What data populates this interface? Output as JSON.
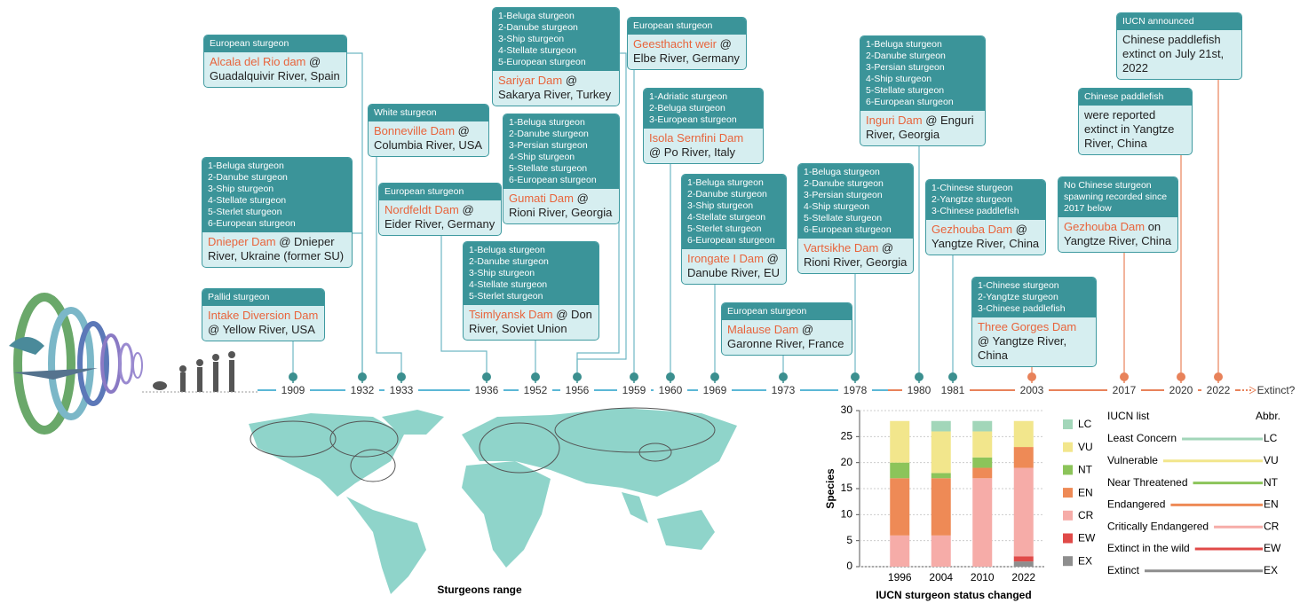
{
  "timeline": {
    "years": [
      "1909",
      "1932",
      "1933",
      "1936",
      "1952",
      "1956",
      "1959",
      "1960",
      "1969",
      "1973",
      "1978",
      "1980",
      "1981",
      "2003",
      "2017",
      "2020",
      "2022",
      "Extinct?"
    ],
    "events": [
      {
        "header": [
          "Pallid sturgeon"
        ],
        "dam": "Intake Diversion Dam",
        "text": "@ Yellow River, USA"
      },
      {
        "header": [
          "1-Beluga sturgeon",
          "2-Danube sturgeon",
          "3-Ship sturgeon",
          "4-Stellate sturgeon",
          "5-Sterlet sturgeon",
          "6-European sturgeon"
        ],
        "dam": "Dnieper Dam",
        "text": "@ Dnieper River, Ukraine (former SU)"
      },
      {
        "header": [
          "European sturgeon"
        ],
        "dam": "Alcala del Rio dam",
        "text": "@ Guadalquivir River, Spain"
      },
      {
        "header": [
          "White sturgeon"
        ],
        "dam": "Bonneville Dam",
        "text": "@ Columbia River, USA"
      },
      {
        "header": [
          "European sturgeon"
        ],
        "dam": "Nordfeldt Dam",
        "text": "@ Eider River, Germany"
      },
      {
        "header": [
          "1-Beluga sturgeon",
          "2-Danube sturgeon",
          "3-Ship sturgeon",
          "4-Stellate sturgeon",
          "5-Sterlet sturgeon"
        ],
        "dam": "Tsimlyansk Dam",
        "text": "@ Don River, Soviet Union"
      },
      {
        "header": [
          "1-Beluga sturgeon",
          "2-Danube sturgeon",
          "3-Persian sturgeon",
          "4-Ship sturgeon",
          "5-Stellate sturgeon",
          "6-European sturgeon"
        ],
        "dam": "Gumati Dam",
        "text": "@ Rioni River, Georgia"
      },
      {
        "header": [
          "1-Beluga sturgeon",
          "2-Danube sturgeon",
          "3-Ship sturgeon",
          "4-Stellate sturgeon",
          "5-European sturgeon"
        ],
        "dam": "Sariyar Dam",
        "text": "@ Sakarya River, Turkey"
      },
      {
        "header": [
          "European sturgeon"
        ],
        "dam": "Geesthacht weir",
        "text": "@ Elbe River, Germany"
      },
      {
        "header": [
          "1-Adriatic sturgeon",
          "2-Beluga sturgeon",
          "3-European sturgeon"
        ],
        "dam": "Isola Sernfini Dam",
        "text": "@ Po River, Italy"
      },
      {
        "header": [
          "1-Beluga sturgeon",
          "2-Danube sturgeon",
          "3-Ship sturgeon",
          "4-Stellate sturgeon",
          "5-Sterlet sturgeon",
          "6-European sturgeon"
        ],
        "dam": "Irongate I Dam",
        "text": "@ Danube River, EU"
      },
      {
        "header": [
          "European sturgeon"
        ],
        "dam": "Malause Dam",
        "text": "@ Garonne River, France"
      },
      {
        "header": [
          "1-Beluga sturgeon",
          "2-Danube sturgeon",
          "3-Persian sturgeon",
          "4-Ship sturgeon",
          "5-Stellate sturgeon",
          "6-European sturgeon"
        ],
        "dam": "Vartsikhe Dam",
        "text": "@ Rioni River, Georgia"
      },
      {
        "header": [
          "1-Beluga sturgeon",
          "2-Danube sturgeon",
          "3-Persian sturgeon",
          "4-Ship sturgeon",
          "5-Stellate sturgeon",
          "6-European sturgeon"
        ],
        "dam": "Inguri Dam",
        "text": "@ Enguri River, Georgia"
      },
      {
        "header": [
          "1-Chinese sturgeon",
          "2-Yangtze sturgeon",
          "3-Chinese paddlefish"
        ],
        "dam": "Gezhouba Dam",
        "text": "@ Yangtze River, China"
      },
      {
        "header": [
          "1-Chinese sturgeon",
          "2-Yangtze sturgeon",
          "3-Chinese paddlefish"
        ],
        "dam": "Three Gorges Dam",
        "text": "@ Yangtze River, China"
      },
      {
        "header": [
          "No Chinese sturgeon spawning recorded since 2017 below"
        ],
        "dam": "Gezhouba Dam",
        "text": "on Yangtze River, China"
      },
      {
        "header": [
          "Chinese paddlefish"
        ],
        "text": "were reported extinct in Yangtze River, China"
      },
      {
        "header": [
          "IUCN announced"
        ],
        "text": "Chinese paddlefish extinct on July 21st, 2022"
      }
    ]
  },
  "map": {
    "title": "Sturgeons  range"
  },
  "chart_data": {
    "type": "stacked_bar",
    "x_label": "IUCN sturgeon status changed",
    "y_label": "Species",
    "categories": [
      "1996",
      "2004",
      "2010",
      "2022"
    ],
    "series": [
      {
        "name": "EX",
        "color": "#8e8e8e",
        "values": [
          0,
          0,
          0,
          1
        ]
      },
      {
        "name": "EW",
        "color": "#e04a48",
        "values": [
          0,
          0,
          0,
          1
        ]
      },
      {
        "name": "CR",
        "color": "#f6aca8",
        "values": [
          6,
          6,
          17,
          17
        ]
      },
      {
        "name": "EN",
        "color": "#ee8a56",
        "values": [
          11,
          11,
          2,
          4
        ]
      },
      {
        "name": "NT",
        "color": "#8cc45a",
        "values": [
          3,
          1,
          2,
          0
        ]
      },
      {
        "name": "VU",
        "color": "#f2e68c",
        "values": [
          8,
          8,
          5,
          5
        ]
      },
      {
        "name": "LC",
        "color": "#a2d6b9",
        "values": [
          0,
          2,
          2,
          0
        ]
      }
    ],
    "ylim": [
      0,
      30
    ],
    "yticks": [
      0,
      5,
      10,
      15,
      20,
      25,
      30
    ]
  },
  "iucn_list": {
    "header": [
      "IUCN list",
      "Abbr."
    ],
    "rows": [
      [
        "Least Concern",
        "LC"
      ],
      [
        "Vulnerable",
        "VU"
      ],
      [
        "Near Threatened",
        "NT"
      ],
      [
        "Endangered",
        "EN"
      ],
      [
        "Critically Endangered",
        "CR"
      ],
      [
        "Extinct in the wild",
        "EW"
      ],
      [
        "Extinct",
        "EX"
      ]
    ]
  }
}
